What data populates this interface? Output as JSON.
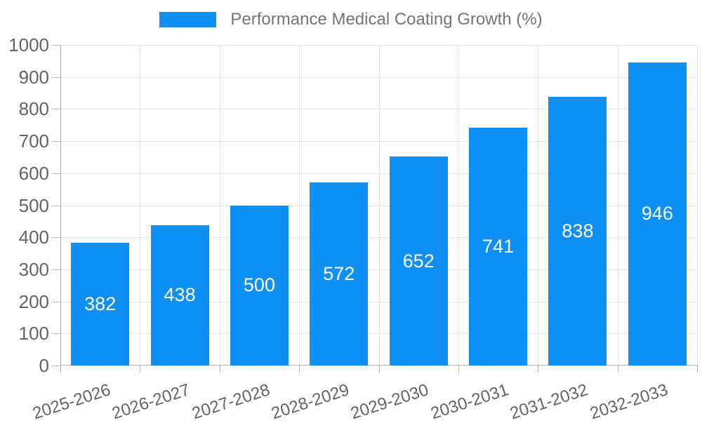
{
  "chart_data": {
    "type": "bar",
    "title": "Performance Medical Coating Growth (%)",
    "categories": [
      "2025-2026",
      "2026-2027",
      "2027-2028",
      "2028-2029",
      "2029-2030",
      "2030-2031",
      "2031-2032",
      "2032-2033"
    ],
    "values": [
      382,
      438,
      500,
      572,
      652,
      741,
      838,
      946
    ],
    "xlabel": "",
    "ylabel": "",
    "ylim": [
      0,
      1000
    ],
    "ytick_step": 100,
    "ytick_labels": [
      "0",
      "100",
      "200",
      "300",
      "400",
      "500",
      "600",
      "700",
      "800",
      "900",
      "1000"
    ],
    "grid": true,
    "legend_position": "top-center",
    "bar_labels_inside": true,
    "colors": {
      "bar": "#0e90f2",
      "bar_label": "#ffffff",
      "axis_text": "#646464",
      "title_text": "#757575",
      "grid_line": "#e4e4e4",
      "axis_line": "#b0b0b0",
      "tick": "#b5b5b5",
      "background": "#ffffff"
    }
  }
}
